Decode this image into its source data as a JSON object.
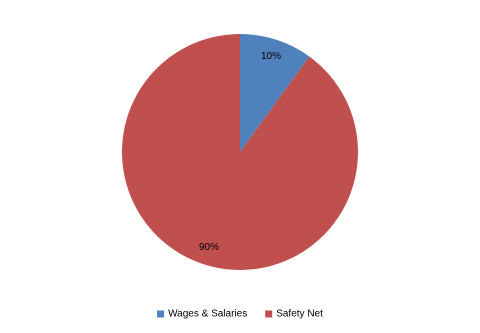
{
  "chart_data": {
    "type": "pie",
    "categories": [
      "Wages & Salaries",
      "Safety Net"
    ],
    "values": [
      10,
      90
    ],
    "value_labels": [
      "10%",
      "90%"
    ],
    "colors": [
      "#4f81bd",
      "#c0504d"
    ],
    "legend": "bottom"
  }
}
